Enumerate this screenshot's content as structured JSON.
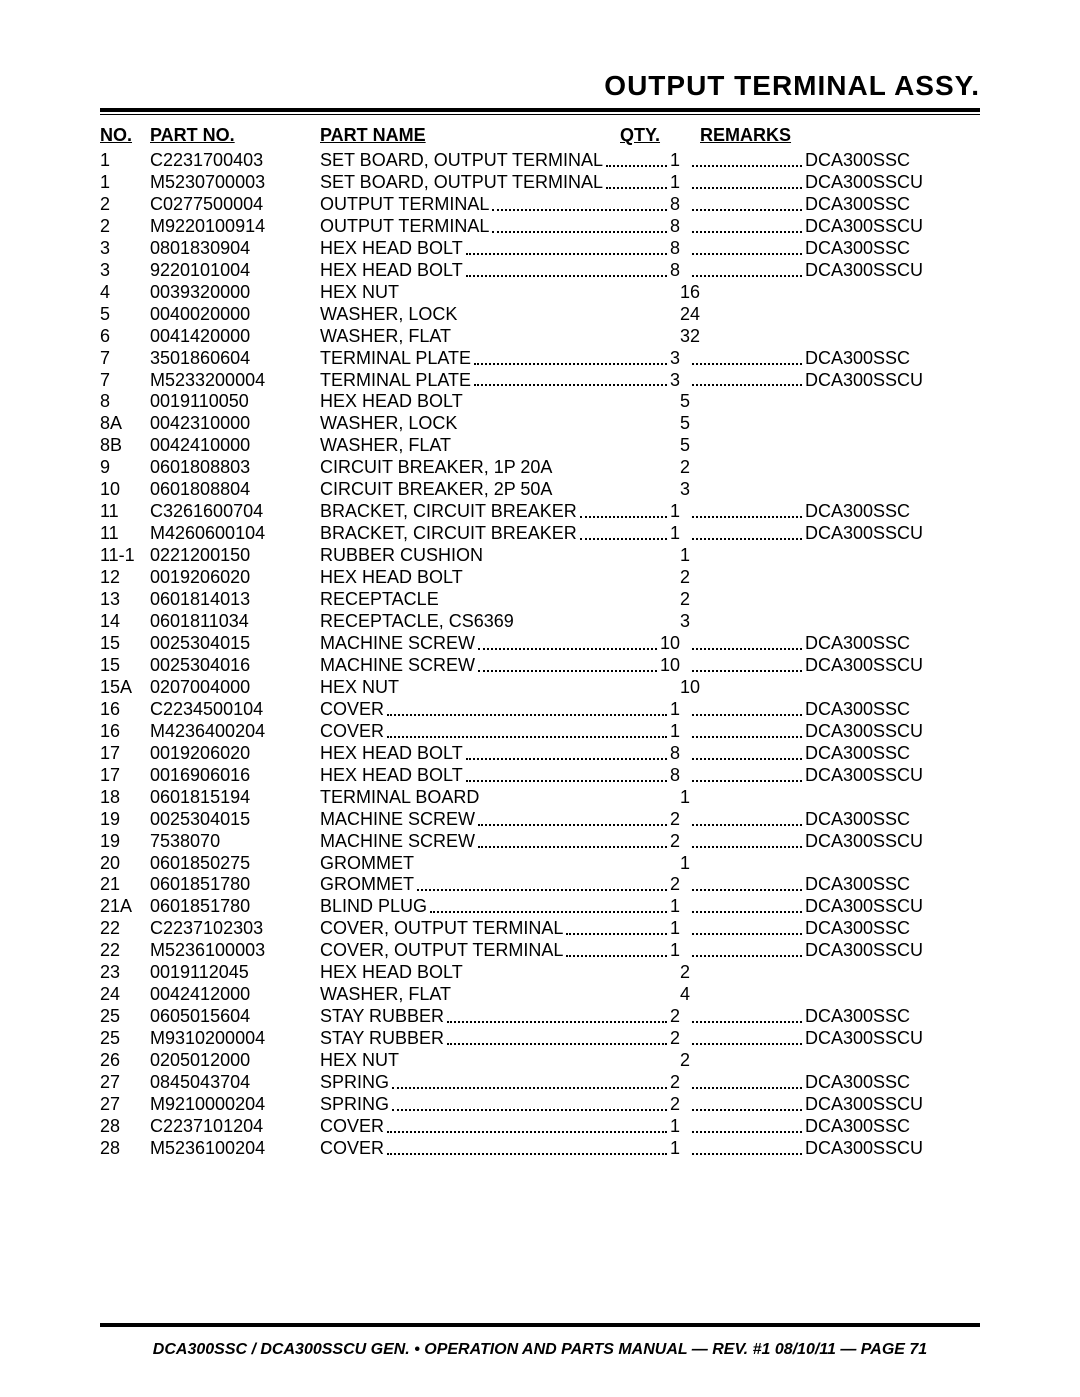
{
  "title": "OUTPUT TERMINAL ASSY.",
  "headers": {
    "no": "NO.",
    "pn": "PART NO.",
    "name": "PART NAME",
    "qty": "QTY.",
    "rem": "REMARKS"
  },
  "footer": "DCA300SSC / DCA300SSCU GEN. • OPERATION AND PARTS MANUAL — REV. #1 08/10/11 — PAGE 71",
  "rows": [
    {
      "no": "1",
      "pn": "C2231700403",
      "name": "SET BOARD, OUTPUT TERMINAL",
      "qty": "1",
      "rem": "DCA300SSC",
      "dotted": true
    },
    {
      "no": "1",
      "pn": "M5230700003",
      "name": "SET BOARD, OUTPUT TERMINAL",
      "qty": "1",
      "rem": "DCA300SSCU",
      "dotted": true
    },
    {
      "no": "2",
      "pn": "C0277500004",
      "name": "OUTPUT TERMINAL",
      "qty": "8",
      "rem": "DCA300SSC",
      "dotted": true
    },
    {
      "no": "2",
      "pn": "M9220100914",
      "name": "OUTPUT TERMINAL",
      "qty": "8",
      "rem": "DCA300SSCU",
      "dotted": true
    },
    {
      "no": "3",
      "pn": "0801830904",
      "name": "HEX HEAD BOLT",
      "qty": "8",
      "rem": "DCA300SSC",
      "dotted": true
    },
    {
      "no": "3",
      "pn": "9220101004",
      "name": "HEX HEAD BOLT",
      "qty": "8",
      "rem": "DCA300SSCU",
      "dotted": true
    },
    {
      "no": "4",
      "pn": "0039320000",
      "name": "HEX NUT",
      "qty": "16",
      "rem": "",
      "dotted": false
    },
    {
      "no": "5",
      "pn": "0040020000",
      "name": "WASHER, LOCK",
      "qty": "24",
      "rem": "",
      "dotted": false
    },
    {
      "no": "6",
      "pn": "0041420000",
      "name": "WASHER, FLAT",
      "qty": "32",
      "rem": "",
      "dotted": false
    },
    {
      "no": "7",
      "pn": "3501860604",
      "name": "TERMINAL PLATE",
      "qty": "3",
      "rem": "DCA300SSC",
      "dotted": true
    },
    {
      "no": "7",
      "pn": "M5233200004",
      "name": "TERMINAL PLATE",
      "qty": "3",
      "rem": "DCA300SSCU",
      "dotted": true
    },
    {
      "no": "8",
      "pn": "0019110050",
      "name": "HEX HEAD BOLT",
      "qty": "5",
      "rem": "",
      "dotted": false
    },
    {
      "no": "8A",
      "pn": "0042310000",
      "name": "WASHER, LOCK",
      "qty": "5",
      "rem": "",
      "dotted": false
    },
    {
      "no": "8B",
      "pn": "0042410000",
      "name": "WASHER, FLAT",
      "qty": "5",
      "rem": "",
      "dotted": false
    },
    {
      "no": "9",
      "pn": "0601808803",
      "name": "CIRCUIT BREAKER, 1P 20A",
      "qty": "2",
      "rem": "",
      "dotted": false
    },
    {
      "no": "10",
      "pn": "0601808804",
      "name": "CIRCUIT BREAKER, 2P 50A",
      "qty": "3",
      "rem": "",
      "dotted": false
    },
    {
      "no": "11",
      "pn": "C3261600704",
      "name": "BRACKET, CIRCUIT BREAKER",
      "qty": "1",
      "rem": "DCA300SSC",
      "dotted": true
    },
    {
      "no": "11",
      "pn": "M4260600104",
      "name": "BRACKET, CIRCUIT BREAKER",
      "qty": "1",
      "rem": "DCA300SSCU",
      "dotted": true
    },
    {
      "no": "11-1",
      "pn": "0221200150",
      "name": "RUBBER CUSHION",
      "qty": "1",
      "rem": "",
      "dotted": false
    },
    {
      "no": "12",
      "pn": "0019206020",
      "name": "HEX HEAD BOLT",
      "qty": "2",
      "rem": "",
      "dotted": false
    },
    {
      "no": "13",
      "pn": "0601814013",
      "name": "RECEPTACLE",
      "qty": "2",
      "rem": "",
      "dotted": false
    },
    {
      "no": "14",
      "pn": "0601811034",
      "name": "RECEPTACLE, CS6369",
      "qty": "3",
      "rem": "",
      "dotted": false
    },
    {
      "no": "15",
      "pn": "0025304015",
      "name": "MACHINE SCREW",
      "qty": "10",
      "rem": "DCA300SSC",
      "dotted": true
    },
    {
      "no": "15",
      "pn": "0025304016",
      "name": "MACHINE SCREW",
      "qty": "10",
      "rem": "DCA300SSCU",
      "dotted": true
    },
    {
      "no": "15A",
      "pn": "0207004000",
      "name": "HEX NUT",
      "qty": "10",
      "rem": "",
      "dotted": false
    },
    {
      "no": "16",
      "pn": "C2234500104",
      "name": "COVER",
      "qty": "1",
      "rem": "DCA300SSC",
      "dotted": true
    },
    {
      "no": "16",
      "pn": "M4236400204",
      "name": "COVER",
      "qty": "1",
      "rem": "DCA300SSCU",
      "dotted": true
    },
    {
      "no": "17",
      "pn": "0019206020",
      "name": "HEX HEAD BOLT",
      "qty": "8",
      "rem": "DCA300SSC",
      "dotted": true
    },
    {
      "no": "17",
      "pn": "0016906016",
      "name": "HEX HEAD BOLT",
      "qty": "8",
      "rem": "DCA300SSCU",
      "dotted": true
    },
    {
      "no": "18",
      "pn": "0601815194",
      "name": "TERMINAL BOARD",
      "qty": "1",
      "rem": "",
      "dotted": false
    },
    {
      "no": "19",
      "pn": "0025304015",
      "name": "MACHINE SCREW",
      "qty": "2",
      "rem": "DCA300SSC",
      "dotted": true
    },
    {
      "no": "19",
      "pn": "7538070",
      "name": "MACHINE SCREW",
      "qty": "2",
      "rem": "DCA300SSCU",
      "dotted": true
    },
    {
      "no": "20",
      "pn": "0601850275",
      "name": "GROMMET",
      "qty": "1",
      "rem": "",
      "dotted": false
    },
    {
      "no": "21",
      "pn": "0601851780",
      "name": "GROMMET",
      "qty": "2",
      "rem": "DCA300SSC",
      "dotted": true
    },
    {
      "no": "21A",
      "pn": "0601851780",
      "name": "BLIND PLUG",
      "qty": "1",
      "rem": "DCA300SSCU",
      "dotted": true
    },
    {
      "no": "22",
      "pn": "C2237102303",
      "name": "COVER, OUTPUT TERMINAL",
      "qty": "1",
      "rem": "DCA300SSC",
      "dotted": true
    },
    {
      "no": "22",
      "pn": "M5236100003",
      "name": "COVER, OUTPUT TERMINAL",
      "qty": "1",
      "rem": "DCA300SSCU",
      "dotted": true
    },
    {
      "no": "23",
      "pn": "0019112045",
      "name": "HEX HEAD BOLT",
      "qty": "2",
      "rem": "",
      "dotted": false
    },
    {
      "no": "24",
      "pn": "0042412000",
      "name": "WASHER, FLAT",
      "qty": "4",
      "rem": "",
      "dotted": false
    },
    {
      "no": "25",
      "pn": "0605015604",
      "name": "STAY RUBBER",
      "qty": "2",
      "rem": "DCA300SSC",
      "dotted": true
    },
    {
      "no": "25",
      "pn": "M9310200004",
      "name": "STAY RUBBER",
      "qty": "2",
      "rem": "DCA300SSCU",
      "dotted": true
    },
    {
      "no": "26",
      "pn": "0205012000",
      "name": "HEX NUT",
      "qty": "2",
      "rem": "",
      "dotted": false
    },
    {
      "no": "27",
      "pn": "0845043704",
      "name": "SPRING",
      "qty": "2",
      "rem": "DCA300SSC",
      "dotted": true
    },
    {
      "no": "27",
      "pn": "M9210000204",
      "name": "SPRING",
      "qty": "2",
      "rem": "DCA300SSCU",
      "dotted": true
    },
    {
      "no": "28",
      "pn": "C2237101204",
      "name": "COVER",
      "qty": "1",
      "rem": "DCA300SSC",
      "dotted": true
    },
    {
      "no": "28",
      "pn": "M5236100204",
      "name": "COVER",
      "qty": "1",
      "rem": "DCA300SSCU",
      "dotted": true
    }
  ]
}
